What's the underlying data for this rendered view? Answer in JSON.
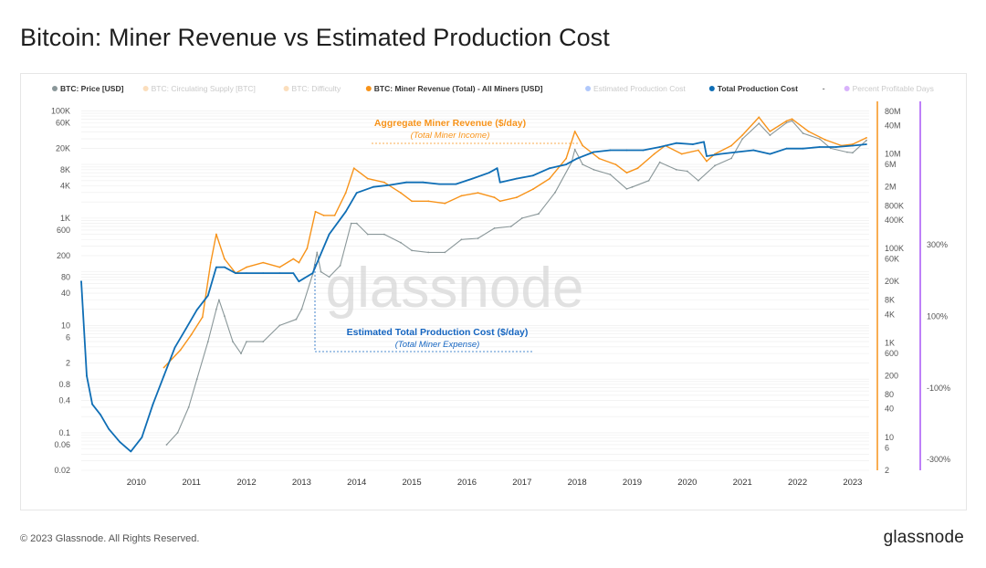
{
  "title": "Bitcoin: Miner Revenue vs Estimated Production Cost",
  "footer": "© 2023 Glassnode. All Rights Reserved.",
  "brand": "glassnode",
  "watermark": "glassnode",
  "colors": {
    "price": "#8a9799",
    "revenue": "#f7931a",
    "cost": "#0f6eb5",
    "estimated": "#4f86f7",
    "percent": "#a855f7",
    "disabled_legend": "#c9c9c9"
  },
  "chart_data": {
    "type": "line",
    "title": "Bitcoin: Miner Revenue vs Estimated Production Cost",
    "x_ticks": [
      "2010",
      "2011",
      "2012",
      "2013",
      "2014",
      "2015",
      "2016",
      "2017",
      "2018",
      "2019",
      "2020",
      "2021",
      "2022",
      "2023"
    ],
    "left_axis": {
      "scale": "log",
      "ticks": [
        "100K",
        "60K",
        "20K",
        "8K",
        "4K",
        "1K",
        "600",
        "200",
        "80",
        "40",
        "10",
        "6",
        "2",
        "0.8",
        "0.4",
        "0.1",
        "0.06",
        "0.02"
      ]
    },
    "right_axis": {
      "scale": "log",
      "ticks": [
        "80M",
        "40M",
        "10M",
        "6M",
        "2M",
        "800K",
        "400K",
        "100K",
        "60K",
        "20K",
        "8K",
        "4K",
        "1K",
        "600",
        "200",
        "80",
        "40",
        "10",
        "6",
        "2"
      ]
    },
    "percent_axis": {
      "ticks": [
        "300%",
        "100%",
        "-100%",
        "-300%"
      ]
    },
    "legend": [
      {
        "label": "BTC: Price [USD]",
        "active": true,
        "color": "#8a9799"
      },
      {
        "label": "BTC: Circulating Supply [BTC]",
        "active": false,
        "color": "#f7b56a"
      },
      {
        "label": "BTC: Difficulty",
        "active": false,
        "color": "#f7b56a"
      },
      {
        "label": "BTC: Miner Revenue (Total) - All Miners [USD]",
        "active": true,
        "color": "#f7931a"
      },
      {
        "label": "Estimated Production Cost",
        "active": false,
        "color": "#4f86f7"
      },
      {
        "label": "Total Production Cost",
        "active": true,
        "color": "#0f6eb5"
      },
      {
        "label": "-",
        "active": true,
        "color": "#666666"
      },
      {
        "label": "Percent Profitable Days",
        "active": false,
        "color": "#a855f7"
      }
    ],
    "annotations": [
      {
        "title": "Aggregate Miner Revenue ($/day)",
        "subtitle": "(Total Miner Income)"
      },
      {
        "title": "Estimated Total Production Cost ($/day)",
        "subtitle": "(Total Miner Expense)"
      }
    ],
    "series": [
      {
        "name": "BTC: Price [USD]",
        "axis": "left",
        "x": [
          2010.55,
          2010.75,
          2010.95,
          2011.1,
          2011.3,
          2011.45,
          2011.5,
          2011.6,
          2011.75,
          2011.9,
          2012.0,
          2012.3,
          2012.6,
          2012.9,
          2013.0,
          2013.2,
          2013.28,
          2013.35,
          2013.5,
          2013.7,
          2013.9,
          2014.0,
          2014.2,
          2014.5,
          2014.8,
          2015.0,
          2015.3,
          2015.6,
          2015.9,
          2016.2,
          2016.5,
          2016.8,
          2017.0,
          2017.3,
          2017.6,
          2017.9,
          2017.96,
          2018.1,
          2018.3,
          2018.6,
          2018.9,
          2019.0,
          2019.3,
          2019.5,
          2019.8,
          2020.0,
          2020.2,
          2020.5,
          2020.8,
          2021.0,
          2021.3,
          2021.5,
          2021.8,
          2021.9,
          2022.1,
          2022.4,
          2022.6,
          2022.9,
          2023.0,
          2023.25
        ],
        "values": [
          0.06,
          0.1,
          0.3,
          1,
          5,
          20,
          30,
          15,
          5,
          3,
          5,
          5,
          10,
          13,
          20,
          90,
          230,
          100,
          80,
          130,
          800,
          800,
          500,
          500,
          350,
          250,
          230,
          230,
          400,
          420,
          650,
          700,
          1000,
          1200,
          3000,
          11000,
          19000,
          10000,
          8000,
          6500,
          3500,
          3800,
          5000,
          11000,
          8000,
          7500,
          5000,
          9500,
          13000,
          30000,
          58000,
          35000,
          60000,
          65000,
          38000,
          30000,
          20000,
          17000,
          16500,
          28000
        ]
      },
      {
        "name": "BTC: Miner Revenue (Total) - All Miners [USD]",
        "axis": "right",
        "x": [
          2010.5,
          2010.6,
          2010.8,
          2011.0,
          2011.2,
          2011.35,
          2011.45,
          2011.6,
          2011.8,
          2012.0,
          2012.3,
          2012.6,
          2012.85,
          2012.95,
          2013.1,
          2013.25,
          2013.4,
          2013.6,
          2013.8,
          2013.95,
          2014.2,
          2014.5,
          2014.8,
          2015.0,
          2015.3,
          2015.6,
          2015.9,
          2016.2,
          2016.5,
          2016.6,
          2016.9,
          2017.2,
          2017.5,
          2017.8,
          2017.96,
          2018.1,
          2018.4,
          2018.7,
          2018.9,
          2019.1,
          2019.4,
          2019.6,
          2019.9,
          2020.2,
          2020.35,
          2020.5,
          2020.8,
          2021.0,
          2021.3,
          2021.5,
          2021.8,
          2021.9,
          2022.2,
          2022.5,
          2022.8,
          2023.0,
          2023.25
        ],
        "values": [
          300,
          400,
          700,
          1500,
          3500,
          50000,
          200000,
          60000,
          30000,
          40000,
          50000,
          40000,
          60000,
          50000,
          100000,
          600000,
          500000,
          500000,
          1500000,
          5000000,
          3000000,
          2500000,
          1500000,
          1000000,
          1000000,
          900000,
          1300000,
          1500000,
          1200000,
          1000000,
          1200000,
          1800000,
          3000000,
          8000000,
          30000000,
          15000000,
          8000000,
          6000000,
          4000000,
          5000000,
          10000000,
          15000000,
          10000000,
          12000000,
          7000000,
          10000000,
          15000000,
          25000000,
          60000000,
          30000000,
          50000000,
          55000000,
          30000000,
          20000000,
          15000000,
          16000000,
          22000000
        ]
      },
      {
        "name": "Total Production Cost",
        "axis": "right",
        "x": [
          2009.0,
          2009.1,
          2009.2,
          2009.35,
          2009.5,
          2009.7,
          2009.9,
          2010.1,
          2010.3,
          2010.5,
          2010.7,
          2010.9,
          2011.1,
          2011.3,
          2011.45,
          2011.6,
          2011.8,
          2012.0,
          2012.3,
          2012.6,
          2012.85,
          2012.95,
          2013.2,
          2013.5,
          2013.8,
          2014.0,
          2014.3,
          2014.6,
          2014.9,
          2015.2,
          2015.5,
          2015.8,
          2016.1,
          2016.4,
          2016.55,
          2016.6,
          2016.9,
          2017.2,
          2017.5,
          2017.8,
          2018.0,
          2018.3,
          2018.6,
          2018.9,
          2019.2,
          2019.5,
          2019.8,
          2020.1,
          2020.3,
          2020.35,
          2020.6,
          2020.9,
          2021.2,
          2021.5,
          2021.8,
          2022.1,
          2022.4,
          2022.7,
          2023.0,
          2023.25
        ],
        "values": [
          20000,
          200,
          50,
          30,
          15,
          8,
          5,
          10,
          50,
          200,
          800,
          2000,
          5000,
          10000,
          40000,
          40000,
          30000,
          30000,
          30000,
          30000,
          30000,
          20000,
          30000,
          200000,
          600000,
          1500000,
          2000000,
          2200000,
          2500000,
          2500000,
          2300000,
          2300000,
          3000000,
          4000000,
          5000000,
          2500000,
          3000000,
          3500000,
          5000000,
          6000000,
          8000000,
          11000000,
          12000000,
          12000000,
          12000000,
          14000000,
          17000000,
          16000000,
          18000000,
          9000000,
          10000000,
          11000000,
          12000000,
          10000000,
          13000000,
          13000000,
          14000000,
          14000000,
          15000000,
          16000000
        ]
      }
    ]
  }
}
